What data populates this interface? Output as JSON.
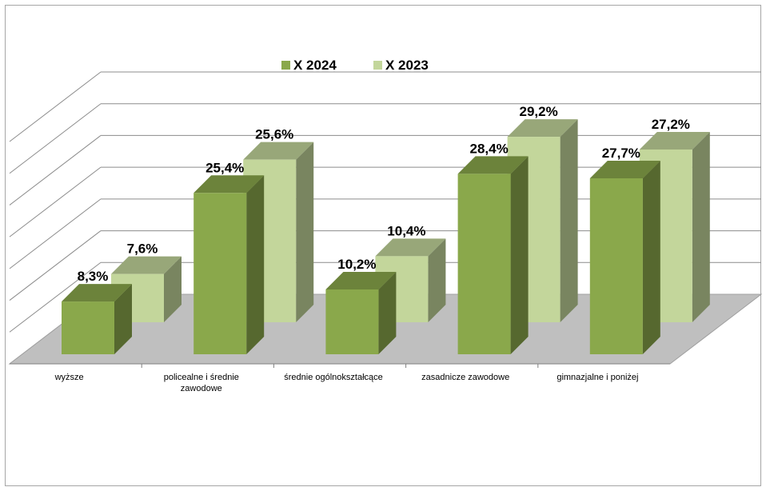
{
  "chart_data": {
    "type": "bar",
    "categories": [
      "wyższe",
      "policealne i średnie zawodowe",
      "średnie ogólnokształcące",
      "zasadnicze zawodowe",
      "gimnazjalne i poniżej"
    ],
    "category_lines": [
      [
        "wyższe"
      ],
      [
        "policealne i średnie",
        "zawodowe"
      ],
      [
        "średnie ogólnokształcące"
      ],
      [
        "zasadnicze zawodowe"
      ],
      [
        "gimnazjalne i poniżej"
      ]
    ],
    "series": [
      {
        "name": "X 2024",
        "values": [
          8.3,
          25.4,
          10.2,
          28.4,
          27.7
        ],
        "labels": [
          "8,3%",
          "25,4%",
          "10,2%",
          "28,4%",
          "27,7%"
        ],
        "color": "#8aa84b"
      },
      {
        "name": "X 2023",
        "values": [
          7.6,
          25.6,
          10.4,
          29.2,
          27.2
        ],
        "labels": [
          "7,6%",
          "25,6%",
          "10,4%",
          "29,2%",
          "27,2%"
        ],
        "color": "#c3d69b"
      }
    ],
    "ylim": [
      0,
      35
    ],
    "grid": true,
    "legend": "top",
    "three_d": true,
    "floor_color": "#bfbfbf"
  }
}
